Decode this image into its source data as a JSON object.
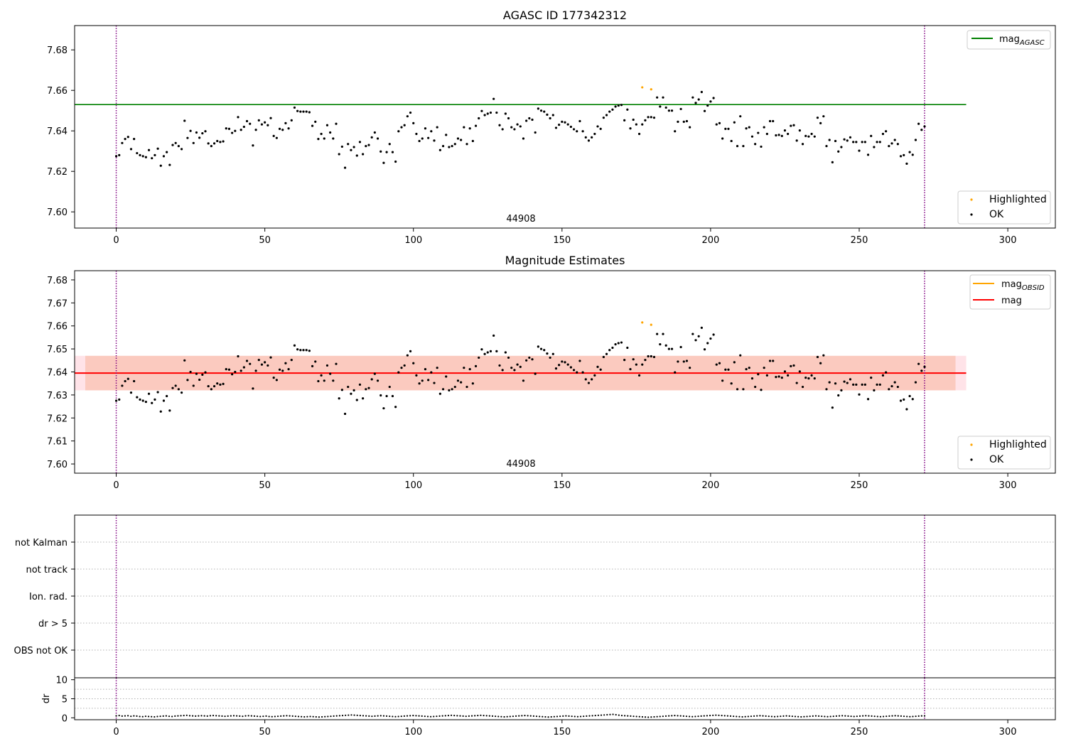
{
  "figure": {
    "panel1_title": "AGASC ID 177342312",
    "panel2_title": "Magnitude Estimates",
    "obsid_label": "44908"
  },
  "colors": {
    "ok": "#000000",
    "highlighted": "#ffa500",
    "mag_agasc": "#008000",
    "mag": "#ff0000",
    "mag_obsid": "#ffa500",
    "obs_boundary": "#800080",
    "band_outer": "#ffc0cb",
    "band_inner": "#f4a582",
    "grid": "#b0b0b0"
  },
  "legends": {
    "mag_agasc": "mag",
    "mag_agasc_sub": "AGASC",
    "mag_obsid": "mag",
    "mag_obsid_sub": "OBSID",
    "mag": "mag",
    "highlighted": "Highlighted",
    "ok": "OK"
  },
  "chart_data": [
    {
      "type": "scatter",
      "title": "AGASC ID 177342312",
      "xlim": [
        -14,
        316
      ],
      "ylim": [
        7.592,
        7.692
      ],
      "yticks": [
        7.6,
        7.62,
        7.64,
        7.66,
        7.68
      ],
      "ytick_labels": [
        "7.60",
        "7.62",
        "7.64",
        "7.66",
        "7.68"
      ],
      "xticks": [
        0,
        50,
        100,
        150,
        200,
        250,
        300
      ],
      "xtick_labels": [
        "0",
        "50",
        "100",
        "150",
        "200",
        "250",
        "300"
      ],
      "hlines": [
        {
          "name": "mag_AGASC",
          "y": 7.653,
          "x": [
            -14,
            286
          ]
        }
      ],
      "vlines": [
        0,
        272
      ],
      "annotation": {
        "text": "44908",
        "x": 136,
        "y": 7.595
      },
      "legend_positions": [
        "upper right",
        "lower right"
      ]
    },
    {
      "type": "scatter",
      "title": "Magnitude Estimates",
      "xlim": [
        -14,
        316
      ],
      "ylim": [
        7.596,
        7.684
      ],
      "yticks": [
        7.6,
        7.61,
        7.62,
        7.63,
        7.64,
        7.65,
        7.66,
        7.67,
        7.68
      ],
      "ytick_labels": [
        "7.60",
        "7.61",
        "7.62",
        "7.63",
        "7.64",
        "7.65",
        "7.66",
        "7.67",
        "7.68"
      ],
      "xticks": [
        0,
        50,
        100,
        150,
        200,
        250,
        300
      ],
      "xtick_labels": [
        "0",
        "50",
        "100",
        "150",
        "200",
        "250",
        "300"
      ],
      "hlines": [
        {
          "name": "mag",
          "y": 7.6395,
          "x": [
            -14,
            286
          ]
        }
      ],
      "bands": [
        {
          "name": "mag range",
          "y": [
            7.632,
            7.647
          ],
          "x": [
            -14,
            286
          ]
        },
        {
          "name": "mag_OBSID range",
          "y": [
            7.632,
            7.647
          ],
          "x": [
            -14,
            286
          ]
        }
      ],
      "vlines": [
        0,
        272
      ],
      "annotation": {
        "text": "44908",
        "x": 136,
        "y": 7.599
      },
      "legend_positions": [
        "upper right",
        "lower right"
      ]
    },
    {
      "type": "scatter",
      "title": "",
      "flag_rows": [
        "not Kalman",
        "not track",
        "Ion. rad.",
        "dr > 5",
        "OBS not OK"
      ],
      "flags_set": [],
      "vlines": [
        0,
        272
      ]
    },
    {
      "type": "scatter",
      "title": "",
      "ylabel": "dr",
      "ylim": [
        -0.5,
        10.5
      ],
      "yticks": [
        0,
        5,
        10
      ],
      "ytick_labels": [
        "0",
        "5",
        "10"
      ],
      "xticks": [
        0,
        50,
        100,
        150,
        200,
        250,
        300
      ],
      "xtick_labels": [
        "0",
        "50",
        "100",
        "150",
        "200",
        "250",
        "300"
      ],
      "dr_range": [
        0.0,
        0.9
      ],
      "vlines": [
        0,
        272
      ]
    }
  ],
  "series": {
    "mag_x_range": [
      0,
      272
    ],
    "ok_mag": [
      7.6275,
      7.628,
      7.634,
      7.636,
      7.637,
      7.631,
      7.636,
      7.629,
      7.628,
      7.6275,
      7.627,
      7.6305,
      7.6265,
      7.628,
      7.6312,
      7.6228,
      7.6275,
      7.6295,
      7.6232,
      7.633,
      7.634,
      7.6325,
      7.631,
      7.645,
      7.6365,
      7.64,
      7.634,
      7.6392,
      7.6366,
      7.6388,
      7.6398,
      7.6338,
      7.6325,
      7.6338,
      7.635,
      7.6345,
      7.6348,
      7.6412,
      7.641,
      7.639,
      7.64,
      7.6468,
      7.6405,
      7.642,
      7.6448,
      7.6435,
      7.6328,
      7.6405,
      7.6452,
      7.6432,
      7.6442,
      7.6428,
      7.6463,
      7.6375,
      7.6365,
      7.641,
      7.6405,
      7.6438,
      7.6412,
      7.6452,
      7.6515,
      7.6498,
      7.6495,
      7.6495,
      7.6495,
      7.6492,
      7.6425,
      7.6445,
      7.636,
      7.6385,
      7.6362,
      7.6428,
      7.6392,
      7.6362,
      7.6435,
      7.6285,
      7.6322,
      7.6218,
      7.6335,
      7.6305,
      7.632,
      7.6278,
      7.6345,
      7.6285,
      7.6325,
      7.633,
      7.6368,
      7.6392,
      7.6362,
      7.6298,
      7.6242,
      7.6295,
      7.6335,
      7.6295,
      7.6248,
      7.6398,
      7.6418,
      7.6428,
      7.6472,
      7.649,
      7.6438,
      7.6385,
      7.635,
      7.6362,
      7.6412,
      7.6365,
      7.6398,
      7.6352,
      7.6418,
      7.6305,
      7.6325,
      7.638,
      7.632,
      7.6325,
      7.6335,
      7.6362,
      7.6355,
      7.6418,
      7.6335,
      7.6412,
      7.635,
      7.6425,
      7.6462,
      7.6498,
      7.6478,
      7.6485,
      7.649,
      7.6558,
      7.649,
      7.6428,
      7.6408,
      7.6485,
      7.6462,
      7.6418,
      7.6408,
      7.6432,
      7.6422,
      7.6362,
      7.645,
      7.6462,
      7.6455,
      7.6392,
      7.651,
      7.65,
      7.6495,
      7.648,
      7.6462,
      7.6478,
      7.6415,
      7.643,
      7.6445,
      7.6442,
      7.6432,
      7.642,
      7.6408,
      7.6398,
      7.6448,
      7.6398,
      7.6368,
      7.6352,
      7.6368,
      7.6385,
      7.6422,
      7.641,
      7.6465,
      7.6478,
      7.6495,
      7.6505,
      7.652,
      7.6525,
      7.6528,
      7.6452,
      7.6505,
      7.6412,
      7.6455,
      7.6432,
      7.6385,
      7.6432,
      7.6452,
      7.6468,
      7.6468,
      7.6465,
      7.6565,
      7.652,
      7.6565,
      7.6515,
      7.65,
      7.65,
      7.6398,
      7.6445,
      7.6508,
      7.6445,
      7.6448,
      7.6418,
      7.6565,
      7.6538,
      7.6555,
      7.6592,
      7.6498,
      7.6525,
      7.6545,
      7.6562,
      7.6432,
      7.6438,
      7.6362,
      7.641,
      7.641,
      7.635,
      7.6442,
      7.6325,
      7.6472,
      7.6325,
      7.6412,
      7.6418,
      7.6372,
      7.6335,
      7.639,
      7.6322,
      7.6418,
      7.6385,
      7.6448,
      7.6448,
      7.6378,
      7.638,
      7.6375,
      7.6402,
      7.6385,
      7.6425,
      7.6428,
      7.6352,
      7.6402,
      7.6335,
      7.6375,
      7.6372,
      7.6385,
      7.6372,
      7.6465,
      7.6438,
      7.6472,
      7.6325,
      7.6355,
      7.6245,
      7.635,
      7.6298,
      7.632,
      7.6358,
      7.6352,
      7.6368,
      7.6345,
      7.6345,
      7.6302,
      7.6345,
      7.6345,
      7.6282,
      7.6375,
      7.632,
      7.6345,
      7.6345,
      7.6385,
      7.6398,
      7.6325,
      7.6338,
      7.6355,
      7.6335,
      7.6275,
      7.628,
      7.6238,
      7.6295,
      7.6282,
      7.6355,
      7.6435,
      7.6405,
      7.6422
    ],
    "highlighted_x": [
      177,
      180
    ],
    "highlighted_mag": [
      7.6615,
      7.6605
    ],
    "dr_values": [
      0.5,
      0.6,
      0.45,
      0.5,
      0.55,
      0.4,
      0.5,
      0.45,
      0.35,
      0.3,
      0.4,
      0.35,
      0.3,
      0.25,
      0.35,
      0.4,
      0.45,
      0.5,
      0.4,
      0.35,
      0.45,
      0.5,
      0.55,
      0.6,
      0.65,
      0.55,
      0.5,
      0.45,
      0.5,
      0.55,
      0.5,
      0.45,
      0.55,
      0.6,
      0.55,
      0.5,
      0.45,
      0.4,
      0.45,
      0.5,
      0.55,
      0.5,
      0.45,
      0.4,
      0.5,
      0.55,
      0.5,
      0.45,
      0.4,
      0.35,
      0.4,
      0.45,
      0.35,
      0.3,
      0.35,
      0.4,
      0.45,
      0.5,
      0.55,
      0.5,
      0.45,
      0.4,
      0.35,
      0.3,
      0.25,
      0.3,
      0.35,
      0.3,
      0.25,
      0.2,
      0.25,
      0.3,
      0.35,
      0.4,
      0.45,
      0.5,
      0.55,
      0.6,
      0.65,
      0.7,
      0.75,
      0.7,
      0.65,
      0.6,
      0.55,
      0.5,
      0.45,
      0.4,
      0.45,
      0.5,
      0.55,
      0.5,
      0.45,
      0.4,
      0.35,
      0.3,
      0.35,
      0.4,
      0.45,
      0.5,
      0.55,
      0.6,
      0.55,
      0.5,
      0.45,
      0.4,
      0.35,
      0.3,
      0.35,
      0.4,
      0.45,
      0.5,
      0.55,
      0.6,
      0.65,
      0.6,
      0.55,
      0.5,
      0.45,
      0.4,
      0.45,
      0.5,
      0.55,
      0.6,
      0.65,
      0.6,
      0.55,
      0.5,
      0.45,
      0.4,
      0.35,
      0.3,
      0.25,
      0.3,
      0.35,
      0.4,
      0.45,
      0.5,
      0.55,
      0.6,
      0.55,
      0.5,
      0.45,
      0.4,
      0.35,
      0.3,
      0.25,
      0.2,
      0.25,
      0.3,
      0.35,
      0.4,
      0.45,
      0.5,
      0.45,
      0.4,
      0.35,
      0.3,
      0.35,
      0.4,
      0.45,
      0.5,
      0.55,
      0.6,
      0.65,
      0.7,
      0.75,
      0.8,
      0.85,
      0.9,
      0.8,
      0.7,
      0.6,
      0.55,
      0.5,
      0.45,
      0.4,
      0.35,
      0.3,
      0.25,
      0.2,
      0.15,
      0.2,
      0.25,
      0.3,
      0.35,
      0.4,
      0.45,
      0.5,
      0.55,
      0.6,
      0.55,
      0.5,
      0.45,
      0.4,
      0.35,
      0.3,
      0.35,
      0.4,
      0.45,
      0.5,
      0.55,
      0.6,
      0.65,
      0.7,
      0.65,
      0.6,
      0.55,
      0.5,
      0.45,
      0.4,
      0.35,
      0.3,
      0.25,
      0.3,
      0.35,
      0.4,
      0.45,
      0.5,
      0.55,
      0.5,
      0.45,
      0.4,
      0.35,
      0.3,
      0.35,
      0.4,
      0.45,
      0.5,
      0.45,
      0.4,
      0.35,
      0.3,
      0.25,
      0.3,
      0.35,
      0.4,
      0.45,
      0.5,
      0.45,
      0.4,
      0.35,
      0.3,
      0.35,
      0.4,
      0.45,
      0.5,
      0.55,
      0.5,
      0.45,
      0.4,
      0.35,
      0.4,
      0.45,
      0.5,
      0.55,
      0.5,
      0.45,
      0.4,
      0.35,
      0.3,
      0.35,
      0.4,
      0.45,
      0.5,
      0.55,
      0.5,
      0.45,
      0.4,
      0.35,
      0.3,
      0.35,
      0.4,
      0.45,
      0.5,
      0.5
    ]
  }
}
